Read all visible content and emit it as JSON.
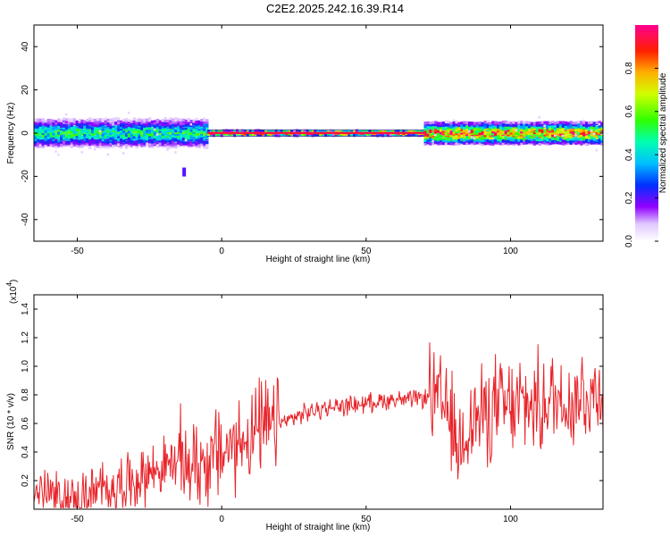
{
  "title": "C2E2.2025.242.16.39.R14",
  "colors": {
    "signal": "#e8242a",
    "axis": "#000000"
  },
  "chart_data": [
    {
      "type": "heatmap",
      "xlabel": "Height of straight line (km)",
      "ylabel": "Frequency (Hz)",
      "xlim": [
        -65,
        132
      ],
      "ylim": [
        -50,
        50
      ],
      "xticks": [
        -50,
        0,
        50,
        100
      ],
      "yticks": [
        -40,
        -20,
        0,
        20,
        40
      ],
      "colorbar": {
        "label": "Normalized spectral amplitude",
        "range": [
          0,
          1
        ],
        "ticks": [
          "0.0",
          "0.2",
          "0.4",
          "0.6",
          "0.8"
        ]
      },
      "features": [
        {
          "x_range": [
            -65,
            -5
          ],
          "band_halfwidth_hz": 5,
          "peak_amplitude": 0.55
        },
        {
          "x_range": [
            -5,
            70
          ],
          "band_halfwidth_hz": 1,
          "peak_amplitude": 0.95
        },
        {
          "x_range": [
            70,
            132
          ],
          "band_halfwidth_hz": 4,
          "peak_amplitude": 0.9
        },
        {
          "x": -13,
          "y": -18,
          "amplitude": 0.2
        }
      ]
    },
    {
      "type": "line",
      "xlabel": "Height of straight line (km)",
      "ylabel": "SNR (10 * v/v)",
      "multiplier_label": "(x10",
      "multiplier_exp": "4",
      "multiplier_close": ")",
      "xlim": [
        -65,
        132
      ],
      "ylim": [
        0,
        1.5
      ],
      "xticks": [
        -50,
        0,
        50,
        100
      ],
      "yticks": [
        "0.2",
        "0.4",
        "0.6",
        "0.8",
        "1.0",
        "1.2",
        "1.4"
      ],
      "series": [
        {
          "x": [
            -65,
            -60,
            -55,
            -50,
            -45,
            -40,
            -35,
            -30,
            -25,
            -20,
            -15,
            -10,
            -5,
            0,
            5,
            10,
            15,
            20,
            25,
            30,
            35,
            40,
            45,
            50,
            55,
            60,
            65,
            70,
            73,
            75,
            78,
            80,
            82,
            85,
            90,
            95,
            100,
            105,
            110,
            115,
            120,
            125,
            130,
            132
          ],
          "y": [
            0.12,
            0.1,
            0.06,
            0.05,
            0.1,
            0.14,
            0.18,
            0.2,
            0.26,
            0.3,
            0.33,
            0.32,
            0.34,
            0.4,
            0.45,
            0.52,
            0.56,
            0.6,
            0.64,
            0.68,
            0.7,
            0.72,
            0.73,
            0.74,
            0.76,
            0.77,
            0.76,
            0.78,
            0.8,
            0.72,
            0.7,
            0.55,
            0.4,
            0.6,
            0.65,
            0.72,
            0.7,
            0.74,
            0.72,
            0.78,
            0.76,
            0.8,
            0.82,
            0.84
          ]
        }
      ]
    }
  ]
}
